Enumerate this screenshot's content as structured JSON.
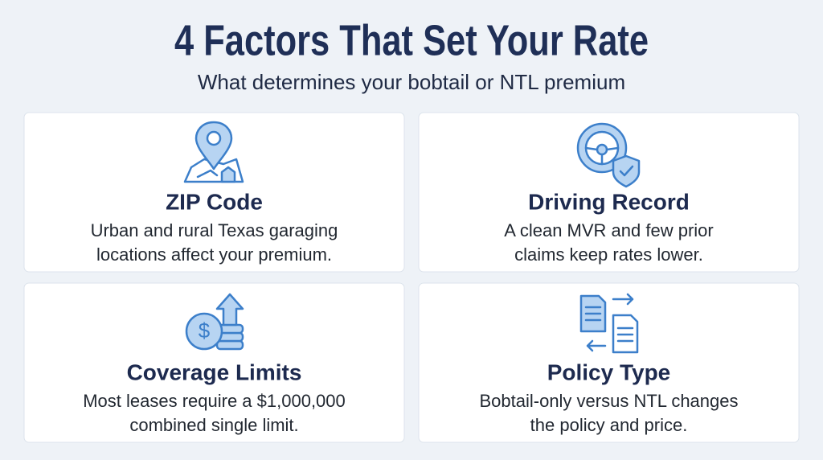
{
  "header": {
    "title": "4 Factors That Set Your Rate",
    "subtitle": "What determines your bobtail or NTL premium"
  },
  "cards": [
    {
      "title": "ZIP Code",
      "lines": [
        "Urban and rural Texas garaging",
        "locations affect your premium."
      ]
    },
    {
      "title": "Driving Record",
      "lines": [
        "A clean MVR and few prior",
        "claims keep rates lower."
      ]
    },
    {
      "title": "Coverage Limits",
      "lines": [
        "Most leases require a $1,000,000",
        "combined single limit."
      ]
    },
    {
      "title": "Policy Type",
      "lines": [
        "Bobtail-only versus NTL changes",
        "the policy and price."
      ]
    }
  ]
}
